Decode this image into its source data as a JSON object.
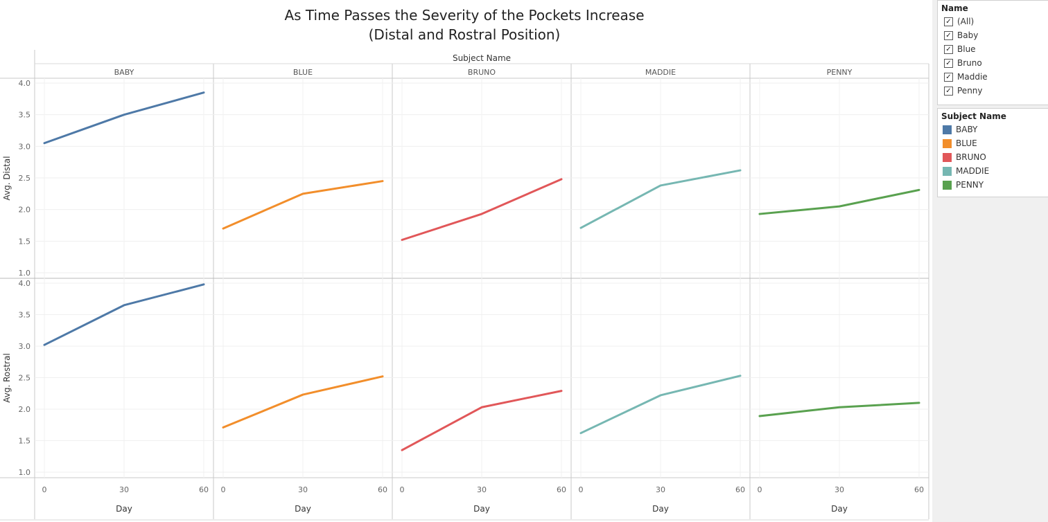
{
  "title": {
    "line1": "As Time Passes the Severity of the Pockets Increase",
    "line2": "(Distal and Rostral Position)"
  },
  "column_header": "Subject Name",
  "filter_panel": {
    "title": "Name",
    "items": [
      "(All)",
      "Baby",
      "Blue",
      "Bruno",
      "Maddie",
      "Penny"
    ],
    "checked_mark": "✓"
  },
  "legend": {
    "title": "Subject Name",
    "items": [
      {
        "label": "BABY",
        "color": "#4e79a7"
      },
      {
        "label": "BLUE",
        "color": "#f28e2b"
      },
      {
        "label": "BRUNO",
        "color": "#e15759"
      },
      {
        "label": "MADDIE",
        "color": "#76b7b2"
      },
      {
        "label": "PENNY",
        "color": "#59a14f"
      }
    ]
  },
  "chart_data": {
    "type": "line",
    "subjects": [
      "BABY",
      "BLUE",
      "BRUNO",
      "MADDIE",
      "PENNY"
    ],
    "colors": [
      "#4e79a7",
      "#f28e2b",
      "#e15759",
      "#76b7b2",
      "#59a14f"
    ],
    "x": [
      0,
      30,
      60
    ],
    "x_ticks": [
      "0",
      "30",
      "60"
    ],
    "xlabel": "Day",
    "rows": [
      {
        "ylabel": "Avg. Distal",
        "ylim": [
          1.0,
          4.0
        ],
        "y_ticks": [
          "1.0",
          "1.5",
          "2.0",
          "2.5",
          "3.0",
          "3.5",
          "4.0"
        ],
        "series": [
          {
            "name": "BABY",
            "values": [
              3.05,
              3.5,
              3.85
            ]
          },
          {
            "name": "BLUE",
            "values": [
              1.7,
              2.25,
              2.45
            ]
          },
          {
            "name": "BRUNO",
            "values": [
              1.52,
              1.93,
              2.48
            ]
          },
          {
            "name": "MADDIE",
            "values": [
              1.71,
              2.38,
              2.62
            ]
          },
          {
            "name": "PENNY",
            "values": [
              1.93,
              2.05,
              2.31
            ]
          }
        ]
      },
      {
        "ylabel": "Avg. Rostral",
        "ylim": [
          1.0,
          4.0
        ],
        "y_ticks": [
          "1.0",
          "1.5",
          "2.0",
          "2.5",
          "3.0",
          "3.5",
          "4.0"
        ],
        "series": [
          {
            "name": "BABY",
            "values": [
              3.02,
              3.65,
              3.98
            ]
          },
          {
            "name": "BLUE",
            "values": [
              1.71,
              2.23,
              2.52
            ]
          },
          {
            "name": "BRUNO",
            "values": [
              1.35,
              2.03,
              2.29
            ]
          },
          {
            "name": "MADDIE",
            "values": [
              1.62,
              2.22,
              2.53
            ]
          },
          {
            "name": "PENNY",
            "values": [
              1.89,
              2.03,
              2.1
            ]
          }
        ]
      }
    ]
  }
}
